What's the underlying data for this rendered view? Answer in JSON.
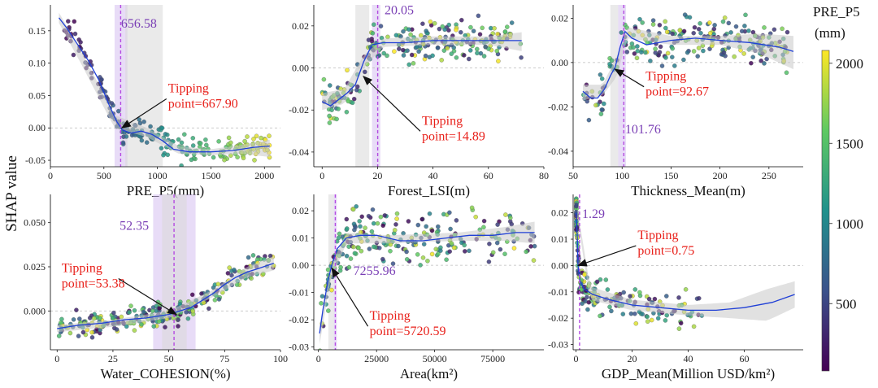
{
  "figure": {
    "y_axis_label": "SHAP value",
    "colorbar": {
      "title_line1": "PRE_P5",
      "title_line2": "(mm)",
      "ticks": [
        {
          "label": "2000",
          "value": 2000
        },
        {
          "label": "1500",
          "value": 1500
        },
        {
          "label": "1000",
          "value": 1000
        },
        {
          "label": "500",
          "value": 500
        }
      ],
      "min": 80,
      "max": 2080,
      "colors": [
        "#440154",
        "#3b528b",
        "#21918c",
        "#5ec962",
        "#fde725"
      ]
    },
    "colors": {
      "fit": "#1f3fd6",
      "ci": "#c8c8c8",
      "dot_edge": "#555555",
      "threshold": "#b44be1",
      "zero": "#bbbbbb",
      "tipping_text": "#e8201a",
      "threshold_text": "#7a3fb5"
    }
  },
  "chart_data": [
    {
      "id": "pre",
      "type": "scatter",
      "xlabel": "PRE_P5(mm)",
      "xlim": [
        0,
        2150
      ],
      "ylim": [
        -0.06,
        0.19
      ],
      "xticks": [
        {
          "label": "0",
          "value": 0
        },
        {
          "label": "500",
          "value": 500
        },
        {
          "label": "1000",
          "value": 1000
        },
        {
          "label": "1500",
          "value": 1500
        },
        {
          "label": "2000",
          "value": 2000
        }
      ],
      "yticks": [
        {
          "label": "-0.05",
          "value": -0.05
        },
        {
          "label": "0.00",
          "value": 0
        },
        {
          "label": "0.05",
          "value": 0.05
        },
        {
          "label": "0.10",
          "value": 0.1
        },
        {
          "label": "0.15",
          "value": 0.15
        }
      ],
      "threshold": 656.58,
      "threshold_label": "656.58",
      "threshold_label_pos": {
        "x": 660,
        "y": 0.155
      },
      "band_purple": [
        600,
        720
      ],
      "band_gray": [
        700,
        1050
      ],
      "tipping": {
        "x": 667.9,
        "y": 0.0,
        "line1": "Tipping",
        "line2": "point=667.90",
        "text_x": 1100,
        "text_y": 0.055
      },
      "color_mode": "x",
      "fit": [
        [
          80,
          0.17
        ],
        [
          150,
          0.155
        ],
        [
          250,
          0.13
        ],
        [
          350,
          0.105
        ],
        [
          450,
          0.075
        ],
        [
          550,
          0.035
        ],
        [
          620,
          0.01
        ],
        [
          670,
          -0.003
        ],
        [
          750,
          -0.008
        ],
        [
          850,
          -0.005
        ],
        [
          950,
          -0.01
        ],
        [
          1050,
          -0.02
        ],
        [
          1150,
          -0.033
        ],
        [
          1300,
          -0.037
        ],
        [
          1500,
          -0.037
        ],
        [
          1700,
          -0.035
        ],
        [
          1900,
          -0.03
        ],
        [
          2050,
          -0.028
        ]
      ],
      "ci": {
        "x": [
          80,
          300,
          600,
          900,
          1200,
          1500,
          1800,
          2050
        ],
        "up": [
          0.178,
          0.115,
          0.02,
          0.0,
          -0.028,
          -0.033,
          -0.026,
          -0.018
        ],
        "lo": [
          0.162,
          0.095,
          0.0,
          -0.014,
          -0.04,
          -0.042,
          -0.04,
          -0.045
        ]
      },
      "scatter": {
        "n": 230,
        "x": [
          80,
          2050
        ],
        "noise": 0.012,
        "seed": 11
      }
    },
    {
      "id": "lsi",
      "type": "scatter",
      "xlabel": "Forest_LSI(m)",
      "xlim": [
        -3,
        80
      ],
      "ylim": [
        -0.047,
        0.03
      ],
      "xticks": [
        {
          "label": "0",
          "value": 0
        },
        {
          "label": "20",
          "value": 20
        },
        {
          "label": "40",
          "value": 40
        },
        {
          "label": "60",
          "value": 60
        },
        {
          "label": "80",
          "value": 80
        }
      ],
      "yticks": [
        {
          "label": "-0.04",
          "value": -0.04
        },
        {
          "label": "-0.02",
          "value": -0.02
        },
        {
          "label": "0.00",
          "value": 0
        },
        {
          "label": "0.02",
          "value": 0.02
        }
      ],
      "threshold": 20.05,
      "threshold_label": "20.05",
      "threshold_label_pos": {
        "x": 22.5,
        "y": 0.0255
      },
      "band_purple": [
        18,
        21
      ],
      "band_gray": [
        12,
        17
      ],
      "tipping": {
        "x": 14.89,
        "y": -0.004,
        "line1": "Tipping",
        "line2": "point=14.89",
        "text_x": 36,
        "text_y": -0.027
      },
      "color_mode": "random",
      "fit": [
        [
          0,
          -0.016
        ],
        [
          3,
          -0.018
        ],
        [
          6,
          -0.015
        ],
        [
          9,
          -0.012
        ],
        [
          12,
          -0.008
        ],
        [
          15,
          0.003
        ],
        [
          18,
          0.011
        ],
        [
          22,
          0.012
        ],
        [
          30,
          0.012
        ],
        [
          40,
          0.013
        ],
        [
          50,
          0.013
        ],
        [
          60,
          0.013
        ],
        [
          72,
          0.013
        ]
      ],
      "ci": {
        "x": [
          0,
          8,
          15,
          22,
          40,
          60,
          72
        ],
        "up": [
          -0.012,
          -0.01,
          0.006,
          0.014,
          0.015,
          0.015,
          0.017
        ],
        "lo": [
          -0.02,
          -0.017,
          0.0,
          0.01,
          0.011,
          0.011,
          0.008
        ]
      },
      "scatter": {
        "n": 240,
        "x": [
          0,
          72
        ],
        "noise": 0.006,
        "seed": 23
      }
    },
    {
      "id": "thick",
      "type": "scatter",
      "xlabel": "Thickness_Mean(m)",
      "xlim": [
        50,
        285
      ],
      "ylim": [
        -0.047,
        0.026
      ],
      "xticks": [
        {
          "label": "50",
          "value": 50
        },
        {
          "label": "100",
          "value": 100
        },
        {
          "label": "150",
          "value": 150
        },
        {
          "label": "200",
          "value": 200
        },
        {
          "label": "250",
          "value": 250
        }
      ],
      "yticks": [
        {
          "label": "-0.04",
          "value": -0.04
        },
        {
          "label": "-0.02",
          "value": -0.02
        },
        {
          "label": "0.00",
          "value": 0
        },
        {
          "label": "0.02",
          "value": 0.02
        }
      ],
      "threshold": 101.76,
      "threshold_label": "101.76",
      "threshold_label_pos": {
        "x": 103,
        "y": -0.032
      },
      "band_purple": [
        96,
        104
      ],
      "band_gray": [
        88,
        96
      ],
      "tipping": {
        "x": 92.67,
        "y": -0.003,
        "line1": "Tipping",
        "line2": "point=92.67",
        "text_x": 124,
        "text_y": -0.008
      },
      "color_mode": "random",
      "fit": [
        [
          60,
          -0.013
        ],
        [
          68,
          -0.016
        ],
        [
          75,
          -0.016
        ],
        [
          82,
          -0.012
        ],
        [
          88,
          -0.006
        ],
        [
          93,
          -0.002
        ],
        [
          98,
          0.007
        ],
        [
          103,
          0.014
        ],
        [
          110,
          0.011
        ],
        [
          125,
          0.008
        ],
        [
          150,
          0.01
        ],
        [
          175,
          0.011
        ],
        [
          200,
          0.01
        ],
        [
          230,
          0.009
        ],
        [
          260,
          0.007
        ],
        [
          275,
          0.005
        ]
      ],
      "ci": {
        "x": [
          60,
          80,
          95,
          105,
          150,
          200,
          240,
          275
        ],
        "up": [
          -0.01,
          -0.01,
          0.003,
          0.016,
          0.012,
          0.012,
          0.013,
          0.012
        ],
        "lo": [
          -0.017,
          -0.015,
          -0.006,
          0.011,
          0.008,
          0.008,
          0.004,
          -0.003
        ]
      },
      "scatter": {
        "n": 230,
        "x": [
          60,
          270
        ],
        "noise": 0.006,
        "seed": 37
      }
    },
    {
      "id": "coh",
      "type": "scatter",
      "xlabel": "Water_COHESION(%)",
      "xlim": [
        -3,
        100
      ],
      "ylim": [
        -0.022,
        0.066
      ],
      "xticks": [
        {
          "label": "0",
          "value": 0
        },
        {
          "label": "25",
          "value": 25
        },
        {
          "label": "50",
          "value": 50
        },
        {
          "label": "75",
          "value": 75
        },
        {
          "label": "100",
          "value": 100
        }
      ],
      "yticks": [
        {
          "label": "0.000",
          "value": 0
        },
        {
          "label": "0.025",
          "value": 0.025
        },
        {
          "label": "0.050",
          "value": 0.05
        }
      ],
      "threshold": 52.35,
      "threshold_label": "52.35",
      "threshold_label_pos": {
        "x": 28,
        "y": 0.046
      },
      "band_purple": [
        43,
        62
      ],
      "band_gray": [
        47,
        58
      ],
      "tipping": {
        "x": 53.38,
        "y": -0.002,
        "line1": "Tipping",
        "line2": "point=53.38",
        "text_x": 2,
        "text_y": 0.022
      },
      "color_mode": "random",
      "fit": [
        [
          0,
          -0.01
        ],
        [
          10,
          -0.008
        ],
        [
          20,
          -0.007
        ],
        [
          30,
          -0.005
        ],
        [
          40,
          -0.004
        ],
        [
          50,
          -0.002
        ],
        [
          55,
          0.0
        ],
        [
          60,
          0.002
        ],
        [
          65,
          0.006
        ],
        [
          70,
          0.01
        ],
        [
          75,
          0.015
        ],
        [
          80,
          0.019
        ],
        [
          85,
          0.022
        ],
        [
          90,
          0.024
        ],
        [
          97,
          0.027
        ]
      ],
      "ci": {
        "x": [
          0,
          25,
          50,
          70,
          85,
          97
        ],
        "up": [
          -0.008,
          -0.005,
          0.0,
          0.012,
          0.025,
          0.031
        ],
        "lo": [
          -0.012,
          -0.009,
          -0.004,
          0.008,
          0.019,
          0.023
        ]
      },
      "scatter": {
        "n": 260,
        "x": [
          0,
          97
        ],
        "noise": 0.004,
        "seed": 41
      }
    },
    {
      "id": "area",
      "type": "scatter",
      "xlabel": "Area(km²)",
      "xlim": [
        -2000,
        97000
      ],
      "ylim": [
        -0.031,
        0.026
      ],
      "xticks": [
        {
          "label": "0",
          "value": 0
        },
        {
          "label": "25000",
          "value": 25000
        },
        {
          "label": "50000",
          "value": 50000
        },
        {
          "label": "75000",
          "value": 75000
        }
      ],
      "yticks": [
        {
          "label": "-0.03",
          "value": -0.03
        },
        {
          "label": "-0.02",
          "value": -0.02
        },
        {
          "label": "-0.01",
          "value": -0.01
        },
        {
          "label": "0.00",
          "value": 0
        },
        {
          "label": "0.01",
          "value": 0.01
        },
        {
          "label": "0.02",
          "value": 0.02
        }
      ],
      "threshold": 7255.96,
      "threshold_label": "7255.96",
      "threshold_label_pos": {
        "x": 15000,
        "y": -0.0035
      },
      "band_purple": [
        6600,
        7900
      ],
      "band_gray": [
        4300,
        6600
      ],
      "tipping": {
        "x": 5720.59,
        "y": -0.001,
        "line1": "Tipping",
        "line2": "point=5720.59",
        "text_x": 22000,
        "text_y": -0.02
      },
      "color_mode": "random",
      "fit": [
        [
          500,
          -0.025
        ],
        [
          2000,
          -0.016
        ],
        [
          4000,
          -0.006
        ],
        [
          5700,
          0.0
        ],
        [
          8000,
          0.006
        ],
        [
          12000,
          0.01
        ],
        [
          18000,
          0.011
        ],
        [
          25000,
          0.011
        ],
        [
          35000,
          0.009
        ],
        [
          45000,
          0.009
        ],
        [
          55000,
          0.01
        ],
        [
          65000,
          0.011
        ],
        [
          75000,
          0.011
        ],
        [
          85000,
          0.012
        ],
        [
          93000,
          0.012
        ]
      ],
      "ci": {
        "x": [
          500,
          5000,
          12000,
          30000,
          60000,
          80000,
          93000
        ],
        "up": [
          -0.022,
          -0.001,
          0.012,
          0.011,
          0.012,
          0.014,
          0.016
        ],
        "lo": [
          -0.029,
          -0.006,
          0.008,
          0.008,
          0.009,
          0.009,
          0.008
        ]
      },
      "scatter": {
        "n": 240,
        "x": [
          300,
          93000
        ],
        "noise": 0.006,
        "seed": 53
      }
    },
    {
      "id": "gdp",
      "type": "scatter",
      "xlabel": "GDP_Mean(Million USD/km²)",
      "xlim": [
        -1,
        81
      ],
      "ylim": [
        -0.032,
        0.027
      ],
      "xticks": [
        {
          "label": "0",
          "value": 0
        },
        {
          "label": "20",
          "value": 20
        },
        {
          "label": "40",
          "value": 40
        },
        {
          "label": "60",
          "value": 60
        }
      ],
      "yticks": [
        {
          "label": "-0.03",
          "value": -0.03
        },
        {
          "label": "-0.02",
          "value": -0.02
        },
        {
          "label": "-0.01",
          "value": -0.01
        },
        {
          "label": "0.00",
          "value": 0
        },
        {
          "label": "0.01",
          "value": 0.01
        },
        {
          "label": "0.02",
          "value": 0.02
        }
      ],
      "threshold": 1.29,
      "threshold_label": "1.29",
      "threshold_label_pos": {
        "x": 2.2,
        "y": 0.018
      },
      "band_purple": null,
      "band_gray": null,
      "tipping": {
        "x": 0.75,
        "y": 0.0,
        "line1": "Tipping",
        "line2": "point=0.75",
        "text_x": 22,
        "text_y": 0.01
      },
      "color_mode": "random",
      "fit": [
        [
          0.1,
          0.02
        ],
        [
          0.5,
          0.01
        ],
        [
          0.75,
          0.0
        ],
        [
          1.5,
          -0.006
        ],
        [
          3,
          -0.009
        ],
        [
          6,
          -0.011
        ],
        [
          12,
          -0.013
        ],
        [
          20,
          -0.015
        ],
        [
          30,
          -0.016
        ],
        [
          40,
          -0.017
        ],
        [
          50,
          -0.017
        ],
        [
          60,
          -0.016
        ],
        [
          70,
          -0.014
        ],
        [
          78,
          -0.011
        ]
      ],
      "ci": {
        "x": [
          0.5,
          5,
          20,
          40,
          55,
          68,
          78
        ],
        "up": [
          0.022,
          -0.008,
          -0.013,
          -0.015,
          -0.014,
          -0.009,
          -0.006
        ],
        "lo": [
          0.018,
          -0.013,
          -0.017,
          -0.019,
          -0.02,
          -0.021,
          -0.016
        ]
      },
      "scatter": {
        "n": 200,
        "x": [
          0.1,
          45
        ],
        "noise": 0.004,
        "seed": 67
      }
    }
  ]
}
